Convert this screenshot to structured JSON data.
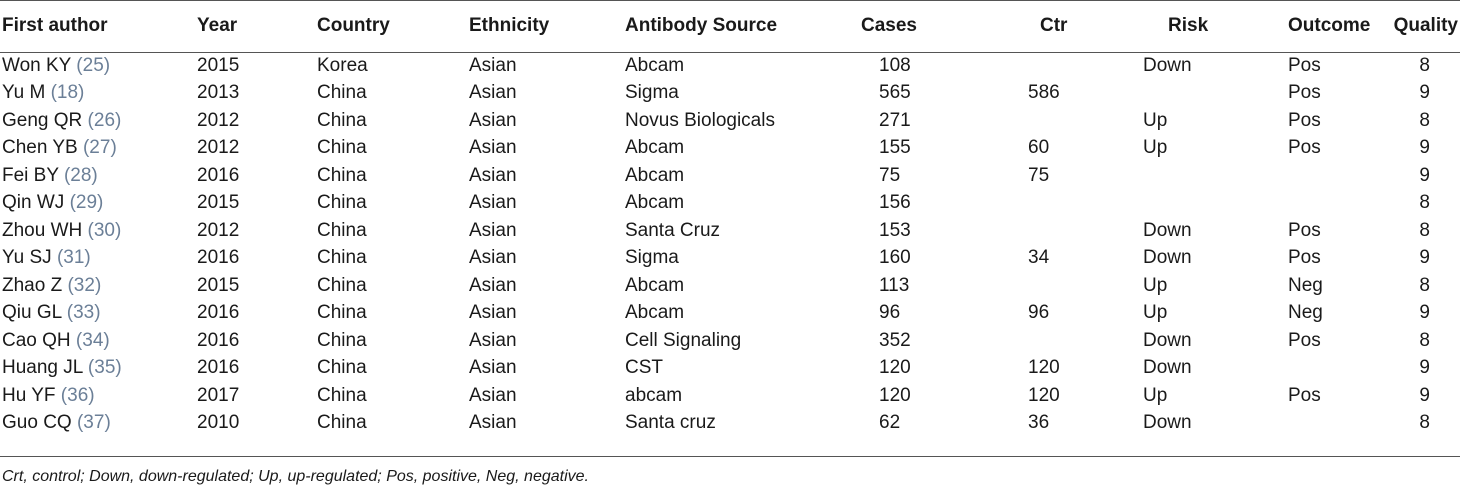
{
  "headers": [
    "First author",
    "Year",
    "Country",
    "Ethnicity",
    "Antibody Source",
    "Cases",
    "Ctr",
    "Risk",
    "Outcome",
    "Quality"
  ],
  "rows": [
    {
      "author": "Won KY",
      "ref": "(25)",
      "year": "2015",
      "country": "Korea",
      "ethnicity": "Asian",
      "source": "Abcam",
      "cases": "108",
      "ctr": "",
      "risk": "Down",
      "outcome": "Pos",
      "quality": "8"
    },
    {
      "author": "Yu M",
      "ref": "(18)",
      "year": "2013",
      "country": "China",
      "ethnicity": "Asian",
      "source": "Sigma",
      "cases": "565",
      "ctr": "586",
      "risk": "",
      "outcome": "Pos",
      "quality": "9"
    },
    {
      "author": "Geng QR",
      "ref": "(26)",
      "year": "2012",
      "country": "China",
      "ethnicity": "Asian",
      "source": "Novus Biologicals",
      "cases": "271",
      "ctr": "",
      "risk": "Up",
      "outcome": "Pos",
      "quality": "8"
    },
    {
      "author": "Chen YB",
      "ref": "(27)",
      "year": "2012",
      "country": "China",
      "ethnicity": "Asian",
      "source": "Abcam",
      "cases": "155",
      "ctr": "60",
      "risk": "Up",
      "outcome": "Pos",
      "quality": "9"
    },
    {
      "author": "Fei BY",
      "ref": "(28)",
      "year": "2016",
      "country": "China",
      "ethnicity": "Asian",
      "source": "Abcam",
      "cases": "75",
      "ctr": "75",
      "risk": "",
      "outcome": "",
      "quality": "9"
    },
    {
      "author": "Qin WJ",
      "ref": "(29)",
      "year": "2015",
      "country": "China",
      "ethnicity": "Asian",
      "source": "Abcam",
      "cases": "156",
      "ctr": "",
      "risk": "",
      "outcome": "",
      "quality": "8"
    },
    {
      "author": "Zhou WH",
      "ref": "(30)",
      "year": "2012",
      "country": "China",
      "ethnicity": "Asian",
      "source": "Santa Cruz",
      "cases": "153",
      "ctr": "",
      "risk": "Down",
      "outcome": "Pos",
      "quality": "8"
    },
    {
      "author": "Yu SJ",
      "ref": "(31)",
      "year": "2016",
      "country": "China",
      "ethnicity": "Asian",
      "source": "Sigma",
      "cases": "160",
      "ctr": "34",
      "risk": "Down",
      "outcome": "Pos",
      "quality": "9"
    },
    {
      "author": "Zhao Z",
      "ref": "(32)",
      "year": "2015",
      "country": "China",
      "ethnicity": "Asian",
      "source": "Abcam",
      "cases": "113",
      "ctr": "",
      "risk": "Up",
      "outcome": "Neg",
      "quality": "8"
    },
    {
      "author": "Qiu GL",
      "ref": "(33)",
      "year": "2016",
      "country": "China",
      "ethnicity": "Asian",
      "source": "Abcam",
      "cases": "96",
      "ctr": "96",
      "risk": "Up",
      "outcome": "Neg",
      "quality": "9"
    },
    {
      "author": "Cao QH",
      "ref": "(34)",
      "year": "2016",
      "country": "China",
      "ethnicity": "Asian",
      "source": "Cell Signaling",
      "cases": "352",
      "ctr": "",
      "risk": "Down",
      "outcome": "Pos",
      "quality": "8"
    },
    {
      "author": "Huang JL",
      "ref": "(35)",
      "year": "2016",
      "country": "China",
      "ethnicity": "Asian",
      "source": "CST",
      "cases": "120",
      "ctr": "120",
      "risk": "Down",
      "outcome": "",
      "quality": "9"
    },
    {
      "author": "Hu YF",
      "ref": "(36)",
      "year": "2017",
      "country": "China",
      "ethnicity": "Asian",
      "source": "abcam",
      "cases": "120",
      "ctr": "120",
      "risk": "Up",
      "outcome": "Pos",
      "quality": "9"
    },
    {
      "author": "Guo CQ",
      "ref": "(37)",
      "year": "2010",
      "country": "China",
      "ethnicity": "Asian",
      "source": "Santa cruz",
      "cases": "62",
      "ctr": "36",
      "risk": "Down",
      "outcome": "",
      "quality": "8"
    }
  ],
  "footnote": "Crt, control; Down, down-regulated; Up, up-regulated; Pos, positive, Neg, negative."
}
